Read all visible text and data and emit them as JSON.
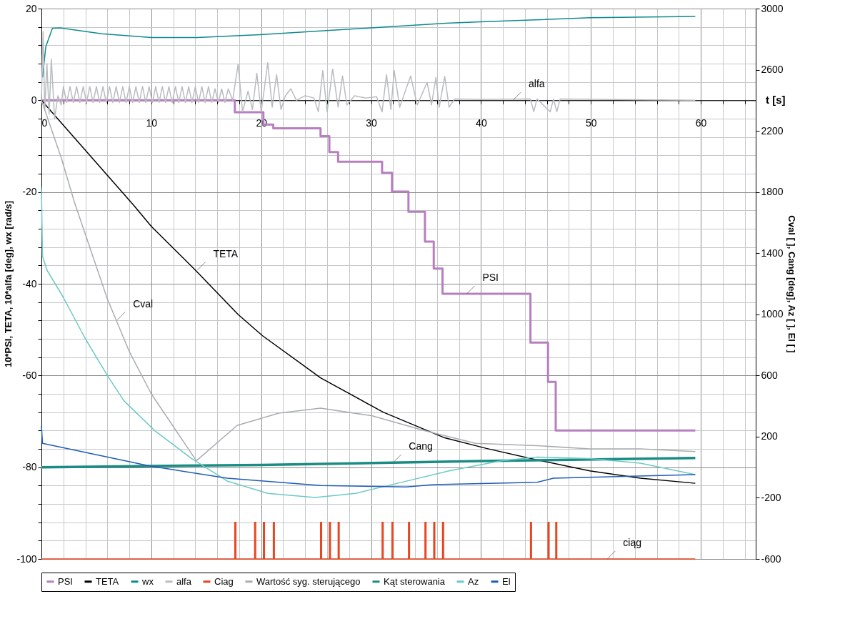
{
  "chart_data": {
    "type": "line",
    "xlabel": "t [s]",
    "ylabel": "10*PSI, TETA, 10*alfa [deg], wx [rad/s]",
    "y2label": "Cval [ ], Cang [deg], Az [ ], El [ ]",
    "xlim": [
      0,
      65
    ],
    "ylim": [
      -100,
      20
    ],
    "y2lim": [
      -600,
      3000
    ],
    "xticks": [
      0,
      {
        "value": 2,
        "label": null
      },
      {
        "value": 4,
        "label": null
      },
      {
        "value": 6,
        "label": null
      },
      {
        "value": 8,
        "label": null
      },
      10,
      {
        "value": 12,
        "label": null
      },
      {
        "value": 14,
        "label": null
      },
      {
        "value": 16,
        "label": null
      },
      {
        "value": 18,
        "label": null
      },
      20,
      {
        "value": 22,
        "label": null
      },
      {
        "value": 24,
        "label": null
      },
      {
        "value": 26,
        "label": null
      },
      {
        "value": 28,
        "label": null
      },
      30,
      {
        "value": 32,
        "label": null
      },
      {
        "value": 34,
        "label": null
      },
      {
        "value": 36,
        "label": null
      },
      {
        "value": 38,
        "label": null
      },
      40,
      {
        "value": 42,
        "label": null
      },
      {
        "value": 44,
        "label": null
      },
      {
        "value": 46,
        "label": null
      },
      {
        "value": 48,
        "label": null
      },
      50,
      {
        "value": 52,
        "label": null
      },
      {
        "value": 54,
        "label": null
      },
      {
        "value": 56,
        "label": null
      },
      {
        "value": 58,
        "label": null
      },
      60,
      {
        "value": 62,
        "label": null
      },
      {
        "value": 64,
        "label": null
      }
    ],
    "yticks": [
      -100,
      {
        "value": -96,
        "label": null
      },
      {
        "value": -92,
        "label": null
      },
      {
        "value": -88,
        "label": null
      },
      {
        "value": -84,
        "label": null
      },
      -80,
      {
        "value": -76,
        "label": null
      },
      {
        "value": -72,
        "label": null
      },
      {
        "value": -68,
        "label": null
      },
      {
        "value": -64,
        "label": null
      },
      -60,
      {
        "value": -56,
        "label": null
      },
      {
        "value": -52,
        "label": null
      },
      {
        "value": -48,
        "label": null
      },
      {
        "value": -44,
        "label": null
      },
      -40,
      {
        "value": -36,
        "label": null
      },
      {
        "value": -32,
        "label": null
      },
      {
        "value": -28,
        "label": null
      },
      {
        "value": -24,
        "label": null
      },
      -20,
      {
        "value": -16,
        "label": null
      },
      {
        "value": -12,
        "label": null
      },
      {
        "value": -8,
        "label": null
      },
      {
        "value": -4,
        "label": null
      },
      0,
      {
        "value": 4,
        "label": null
      },
      {
        "value": 8,
        "label": null
      },
      {
        "value": 12,
        "label": null
      },
      {
        "value": 16,
        "label": null
      },
      20
    ],
    "y2ticks": [
      -600,
      -200,
      200,
      600,
      1000,
      1400,
      1800,
      2200,
      2600,
      3000
    ],
    "grid": true,
    "legend": "bottom",
    "series": [
      {
        "name": "PSI",
        "type": "step",
        "color": "#b77fc0",
        "x": [
          0,
          17.6,
          20.2,
          21.1,
          25.4,
          26.2,
          27.0,
          31.0,
          31.9,
          33.4,
          34.9,
          35.7,
          36.5,
          44.5,
          46.1,
          46.8,
          59.5
        ],
        "values": [
          0,
          -2.6,
          -5.3,
          -6.1,
          -7.8,
          -11.3,
          -13.4,
          -15.8,
          -19.9,
          -24.3,
          -30.8,
          -36.7,
          -42.2,
          -52.8,
          -61.4,
          -72,
          -72
        ]
      },
      {
        "name": "TETA",
        "color": "#000000",
        "x": [
          0,
          1.0,
          8.4,
          10.0,
          14.0,
          17.9,
          20.1,
          25.4,
          31.1,
          36.7,
          40.5,
          45.1,
          49.9,
          54.5,
          59.5
        ],
        "values": [
          0,
          -2.7,
          -22.9,
          -27.5,
          -37,
          -46.7,
          -51.3,
          -60.5,
          -68,
          -73.6,
          -75.9,
          -78.4,
          -80.8,
          -82.4,
          -83.5
        ]
      },
      {
        "name": "wx",
        "color": "#0f8a8f",
        "x": [
          0.1,
          0.4,
          1.0,
          1.7,
          5.5,
          10,
          14.2,
          19.9,
          30,
          36.8,
          40,
          50,
          59.5
        ],
        "values": [
          5,
          11.7,
          15.7,
          15.8,
          14.5,
          13.7,
          13.7,
          14.3,
          15.8,
          16.8,
          17.1,
          18.0,
          18.3
        ]
      },
      {
        "name": "alfa",
        "color": "#b8bcbe",
        "x": [
          0,
          0.15,
          0.3,
          0.5,
          0.7,
          0.9,
          1.2,
          1.5,
          1.8,
          2.0,
          2.3,
          2.6,
          2.9,
          3.2,
          3.5,
          3.8,
          4.1,
          4.4,
          4.7,
          5.0,
          5.3,
          5.6,
          5.9,
          6.2,
          6.5,
          6.8,
          7.1,
          7.4,
          7.7,
          8.0,
          8.3,
          8.6,
          8.9,
          9.2,
          9.5,
          9.8,
          10.1,
          10.4,
          10.7,
          11.0,
          11.3,
          11.6,
          11.9,
          12.2,
          12.5,
          12.8,
          13.1,
          13.4,
          13.7,
          14.0,
          14.3,
          14.6,
          14.9,
          15.2,
          15.5,
          15.8,
          16.1,
          16.4,
          16.7,
          17.0,
          17.4,
          17.9,
          18.3,
          18.8,
          19.2,
          19.6,
          20.0,
          20.6,
          21.0,
          21.4,
          21.8,
          22.2,
          22.7,
          23.2,
          24,
          24.8,
          25.2,
          25.6,
          26.0,
          26.5,
          27.0,
          27.4,
          27.8,
          28.5,
          29.5,
          30.5,
          31.0,
          31.4,
          31.8,
          32.1,
          32.6,
          33.6,
          34.2,
          35.1,
          35.5,
          35.9,
          36.2,
          36.7,
          37.1,
          37.6,
          40,
          44.5,
          44.8,
          45.1,
          46.3,
          46.6,
          46.9,
          47.2,
          59.5
        ],
        "values": [
          0,
          15,
          -2,
          8,
          -3,
          9,
          -4,
          1,
          -1,
          3,
          -0.5,
          3,
          -0.5,
          3,
          -0.5,
          3,
          -0.5,
          3,
          -0.5,
          3,
          -0.5,
          3,
          -0.5,
          3,
          -0.5,
          3,
          -0.5,
          3,
          -0.5,
          3,
          -0.5,
          3,
          -0.5,
          3,
          -0.5,
          3,
          -0.5,
          3,
          -0.5,
          3,
          -0.5,
          3,
          -0.5,
          3,
          -0.5,
          3,
          -0.5,
          3,
          -0.5,
          3,
          -0.5,
          3,
          -0.5,
          3,
          -0.5,
          2.5,
          -0.5,
          2.5,
          -0.5,
          2.5,
          0,
          7.9,
          -2.5,
          2,
          -2,
          5.9,
          -2.5,
          8.2,
          -1.5,
          5.6,
          -2,
          1,
          2.5,
          0,
          1,
          0.5,
          -2.5,
          6.5,
          -2.5,
          6.8,
          -1.5,
          5.3,
          -1,
          1,
          0.5,
          0.8,
          -2.5,
          5.6,
          -2,
          6.5,
          -1.5,
          5.3,
          -1,
          3.9,
          -1,
          5,
          -1.5,
          5.2,
          -1.5,
          0.3,
          0.2,
          0.3,
          -2.5,
          0.3,
          -2.5,
          0.3,
          -2.5,
          0.3,
          0
        ]
      },
      {
        "name": "Ciag",
        "type": "step",
        "color": "#e8431c",
        "x": [
          0,
          17.6,
          17.7,
          19.4,
          19.5,
          20.2,
          20.3,
          21.1,
          21.2,
          25.4,
          25.5,
          26.2,
          26.3,
          27.0,
          27.1,
          31.0,
          31.1,
          31.9,
          32.0,
          33.4,
          33.5,
          34.9,
          35.0,
          35.7,
          35.8,
          36.5,
          36.6,
          44.5,
          44.6,
          46.1,
          46.2,
          46.8,
          46.9,
          59.5
        ],
        "values": [
          -100,
          -92,
          -100,
          -92,
          -100,
          -92,
          -100,
          -92,
          -100,
          -92,
          -100,
          -92,
          -100,
          -92,
          -100,
          -92,
          -100,
          -92,
          -100,
          -92,
          -100,
          -92,
          -100,
          -92,
          -100,
          -92,
          -100,
          -92,
          -100,
          -92,
          -100,
          -92,
          -100,
          -100
        ]
      },
      {
        "name": "Wartość syg. sterującego",
        "axis": "y2",
        "color": "#a9adb0",
        "x": [
          0,
          1.8,
          3.0,
          6.0,
          8.0,
          10,
          14.1,
          17.8,
          21.6,
          25.4,
          30.1,
          34.8,
          39.5,
          45.1,
          49.9,
          54.5,
          59.5
        ],
        "values": [
          2400,
          2025,
          1734,
          1101,
          756,
          480,
          42,
          273,
          354,
          387,
          336,
          240,
          156,
          141,
          120,
          120,
          102
        ]
      },
      {
        "name": "Kąt sterowania",
        "axis": "y2",
        "color": "#1a8c84",
        "x": [
          0,
          20,
          40,
          59.5
        ],
        "values": [
          0,
          15,
          40,
          60
        ]
      },
      {
        "name": "Az",
        "axis": "y2",
        "color": "#6cc9c5",
        "x": [
          0,
          0.1,
          0.5,
          2,
          4,
          6,
          7.5,
          10.3,
          13.6,
          16.9,
          20.6,
          24.9,
          28.6,
          32.4,
          37.1,
          41.8,
          45.1,
          49.9,
          54.5,
          59.5
        ],
        "values": [
          1830,
          1380,
          1290,
          1110,
          840,
          600,
          435,
          240,
          60,
          -90,
          -171,
          -198,
          -171,
          -105,
          -24,
          42,
          66,
          57,
          27,
          -48
        ]
      },
      {
        "name": "El",
        "axis": "y2",
        "color": "#1f5cb8",
        "x": [
          0,
          0.1,
          9.8,
          16.9,
          25.4,
          33.2,
          35.7,
          45.1,
          46.6,
          59.5
        ],
        "values": [
          270,
          156,
          9,
          -72,
          -120,
          -129,
          -114,
          -99,
          -72,
          -48
        ]
      }
    ],
    "annotations": [
      {
        "text": "alfa",
        "x": 42.9,
        "y": 0
      },
      {
        "text": "TETA",
        "x": 14.2,
        "y": -37
      },
      {
        "text": "PSI",
        "x": 38.7,
        "y": -42.2
      },
      {
        "text": "Cval",
        "x": 6.9,
        "y": -47.9
      },
      {
        "text": "Cang",
        "x": 32,
        "y": -79
      },
      {
        "text": "ciąg",
        "x": 51.5,
        "y": -100
      }
    ]
  }
}
